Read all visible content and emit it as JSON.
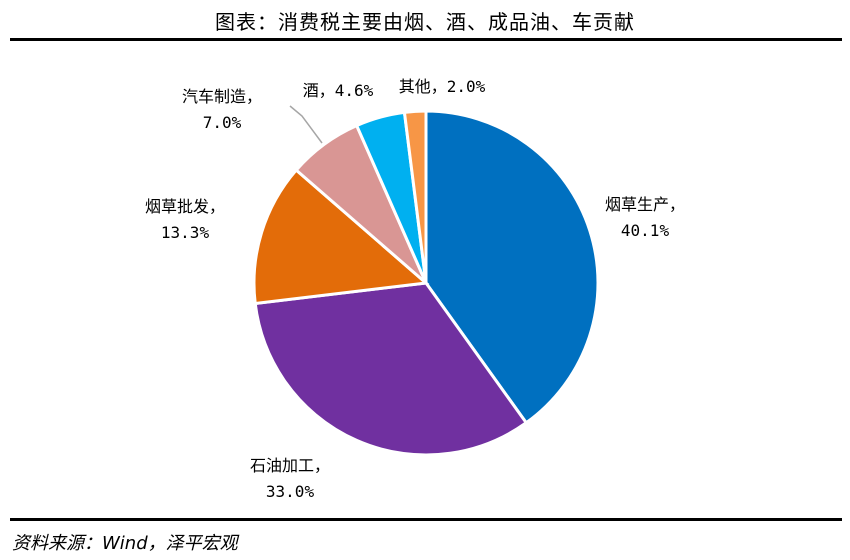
{
  "title": "图表：消费税主要由烟、酒、成品油、车贡献",
  "source": "资料来源：Wind，泽平宏观",
  "chart_data": {
    "type": "pie",
    "title": "图表：消费税主要由烟、酒、成品油、车贡献",
    "slices": [
      {
        "label": "烟草生产",
        "value": 40.1,
        "value_text": "40.1%",
        "color": "#0070C0"
      },
      {
        "label": "石油加工",
        "value": 33.0,
        "value_text": "33.0%",
        "color": "#7030A0"
      },
      {
        "label": "烟草批发",
        "value": 13.3,
        "value_text": "13.3%",
        "color": "#E36C09"
      },
      {
        "label": "汽车制造",
        "value": 7.0,
        "value_text": "7.0%",
        "color": "#D99694"
      },
      {
        "label": "酒",
        "value": 4.6,
        "value_text": "4.6%",
        "color": "#00B0F0"
      },
      {
        "label": "其他",
        "value": 2.0,
        "value_text": "2.0%",
        "color": "#F79646"
      }
    ]
  }
}
